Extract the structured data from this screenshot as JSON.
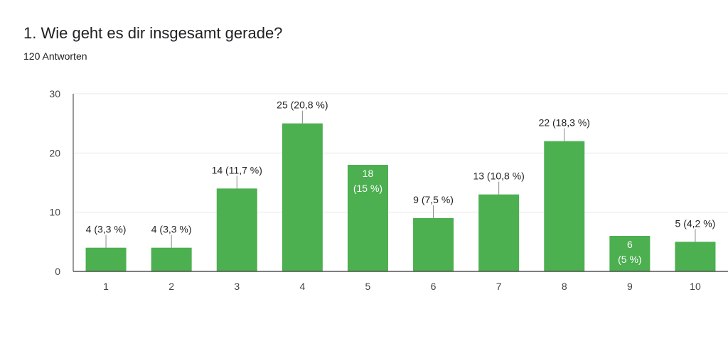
{
  "question": {
    "title": "1. Wie geht es dir insgesamt gerade?",
    "responses": "120 Antworten"
  },
  "colors": {
    "bar": "#4caf50",
    "grid": "#e8e8e8",
    "axis": "#333333"
  },
  "chart_data": {
    "type": "bar",
    "categories": [
      "1",
      "2",
      "3",
      "4",
      "5",
      "6",
      "7",
      "8",
      "9",
      "10"
    ],
    "values": [
      4,
      4,
      14,
      25,
      18,
      9,
      13,
      22,
      6,
      5
    ],
    "labels": [
      "4 (3,3 %)",
      "4 (3,3 %)",
      "14 (11,7 %)",
      "25 (20,8 %)",
      "18|(15 %)",
      "9 (7,5 %)",
      "13 (10,8 %)",
      "22 (18,3 %)",
      "6|(5 %)",
      "5 (4,2 %)"
    ],
    "inside_label": [
      false,
      false,
      false,
      false,
      true,
      false,
      false,
      false,
      true,
      false
    ],
    "ylim": [
      0,
      30
    ],
    "yticks": [
      0,
      10,
      20,
      30
    ],
    "grid": true,
    "xlabel": "",
    "ylabel": ""
  }
}
